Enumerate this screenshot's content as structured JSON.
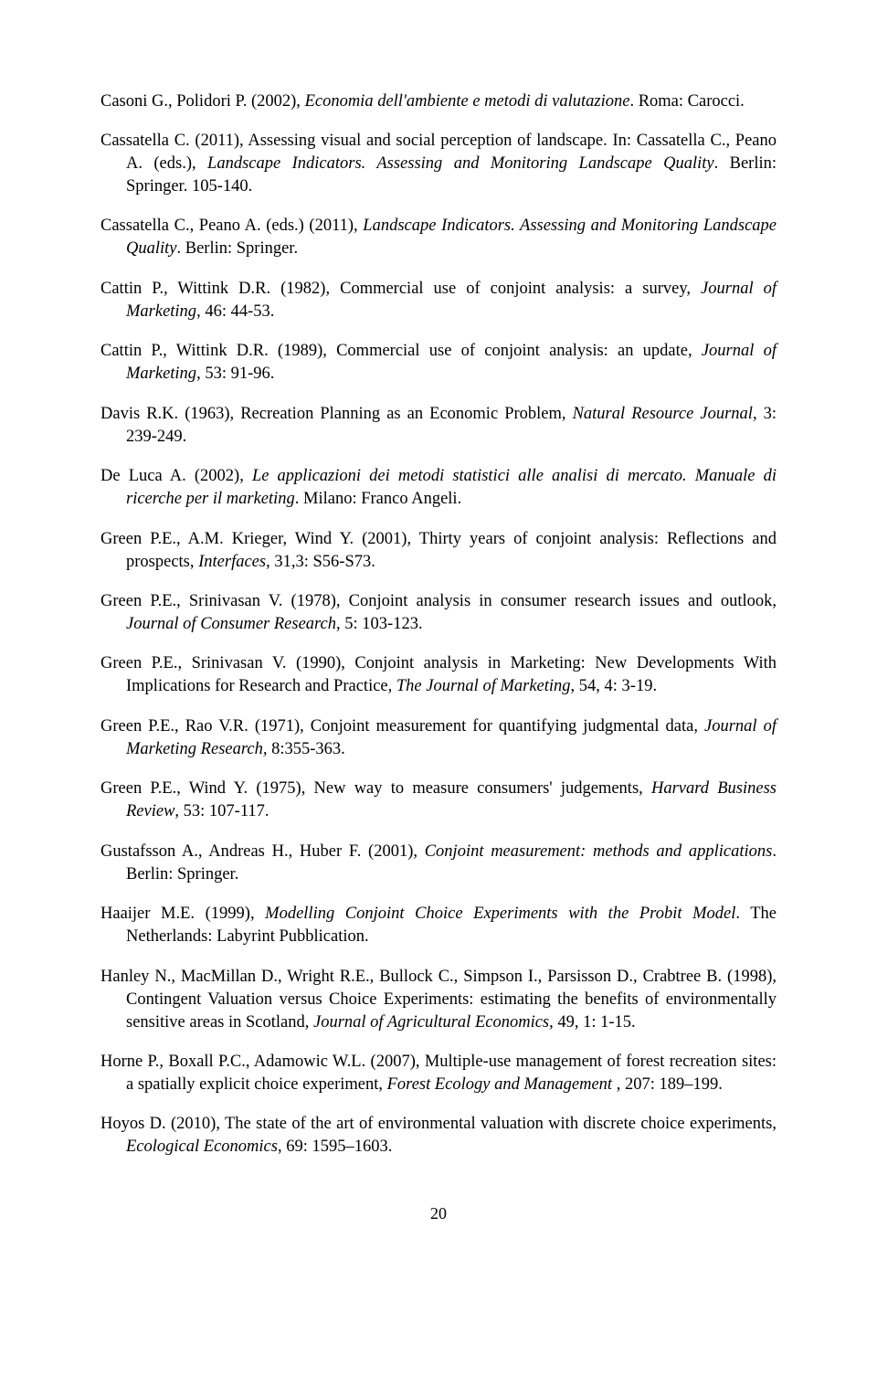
{
  "references": [
    {
      "parts": [
        {
          "t": "Casoni G., Polidori P. (2002), ",
          "i": false
        },
        {
          "t": "Economia dell'ambiente e metodi di valutazione",
          "i": true
        },
        {
          "t": ". Roma: Carocci.",
          "i": false
        }
      ]
    },
    {
      "parts": [
        {
          "t": "Cassatella C. (2011), Assessing visual and social perception of landscape. In: Cassatella C., Peano A. (eds.), ",
          "i": false
        },
        {
          "t": "Landscape Indicators. Assessing and Monitoring Landscape Quality",
          "i": true
        },
        {
          "t": ". Berlin: Springer. 105-140.",
          "i": false
        }
      ]
    },
    {
      "parts": [
        {
          "t": "Cassatella C., Peano A. (eds.) (2011), ",
          "i": false
        },
        {
          "t": "Landscape Indicators. Assessing and Monitoring Landscape Quality",
          "i": true
        },
        {
          "t": ". Berlin: Springer.",
          "i": false
        }
      ]
    },
    {
      "parts": [
        {
          "t": "Cattin P., Wittink D.R. (1982), Commercial use of conjoint analysis: a survey, ",
          "i": false
        },
        {
          "t": "Journal of Marketing",
          "i": true
        },
        {
          "t": ", 46: 44-53.",
          "i": false
        }
      ]
    },
    {
      "parts": [
        {
          "t": "Cattin P., Wittink D.R. (1989), Commercial use of conjoint analysis: an update, ",
          "i": false
        },
        {
          "t": "Journal of Marketing",
          "i": true
        },
        {
          "t": ", 53: 91-96.",
          "i": false
        }
      ]
    },
    {
      "parts": [
        {
          "t": "Davis R.K. (1963), Recreation Planning as an Economic Problem, ",
          "i": false
        },
        {
          "t": "Natural Resource Journal",
          "i": true
        },
        {
          "t": ", 3: 239-249.",
          "i": false
        }
      ]
    },
    {
      "parts": [
        {
          "t": "De Luca A. (2002), ",
          "i": false
        },
        {
          "t": "Le applicazioni dei metodi statistici alle analisi di mercato. Manuale di ricerche per il marketing",
          "i": true
        },
        {
          "t": ". Milano: Franco Angeli.",
          "i": false
        }
      ]
    },
    {
      "parts": [
        {
          "t": "Green P.E., A.M. Krieger, Wind Y. (2001), Thirty years of conjoint analysis: Reflections and prospects, ",
          "i": false
        },
        {
          "t": "Interfaces",
          "i": true
        },
        {
          "t": ", 31,3: S56-S73.",
          "i": false
        }
      ]
    },
    {
      "parts": [
        {
          "t": "Green P.E., Srinivasan V. (1978), Conjoint analysis in consumer research issues and outlook, ",
          "i": false
        },
        {
          "t": "Journal of Consumer Research",
          "i": true
        },
        {
          "t": ", 5: 103-123.",
          "i": false
        }
      ]
    },
    {
      "parts": [
        {
          "t": "Green P.E., Srinivasan V. (1990), Conjoint analysis in Marketing: New Developments With Implications for Research and Practice, ",
          "i": false
        },
        {
          "t": " The Journal of Marketing",
          "i": true
        },
        {
          "t": ", 54, 4: 3-19.",
          "i": false
        }
      ]
    },
    {
      "parts": [
        {
          "t": "Green P.E., Rao V.R. (1971), Conjoint measurement for quantifying judgmental data, ",
          "i": false
        },
        {
          "t": "Journal of Marketing Research, ",
          "i": true
        },
        {
          "t": "8:355-363.",
          "i": false
        }
      ]
    },
    {
      "parts": [
        {
          "t": "Green P.E., Wind Y. (1975), New way to measure consumers' judgements, ",
          "i": false
        },
        {
          "t": "Harvard Business Review",
          "i": true
        },
        {
          "t": ", 53: 107-117.",
          "i": false
        }
      ]
    },
    {
      "parts": [
        {
          "t": "Gustafsson A., Andreas H., Huber F. (2001), ",
          "i": false
        },
        {
          "t": "Conjoint measurement: methods and applications",
          "i": true
        },
        {
          "t": ". Berlin: Springer.",
          "i": false
        }
      ]
    },
    {
      "parts": [
        {
          "t": "Haaijer M.E. (1999), ",
          "i": false
        },
        {
          "t": "Modelling Conjoint Choice Experiments with the Probit Model",
          "i": true
        },
        {
          "t": ". The Netherlands: Labyrint Pubblication.",
          "i": false
        }
      ]
    },
    {
      "parts": [
        {
          "t": "Hanley N., MacMillan D., Wright R.E., Bullock C., Simpson I., Parsisson D., Crabtree B. (1998), Contingent Valuation versus Choice Experiments: estimating the benefits of environmentally sensitive areas in Scotland, ",
          "i": false
        },
        {
          "t": "Journal of Agricultural Economics",
          "i": true
        },
        {
          "t": ", 49, 1: 1-15.",
          "i": false
        }
      ]
    },
    {
      "parts": [
        {
          "t": "Horne P., Boxall P.C., Adamowic W.L. (2007), Multiple-use management of forest recreation sites: a spatially explicit choice experiment, ",
          "i": false
        },
        {
          "t": "Forest Ecology and Management ",
          "i": true
        },
        {
          "t": ", 207: 189–199.",
          "i": false
        }
      ]
    },
    {
      "parts": [
        {
          "t": "Hoyos D. (2010), The state of the art of environmental valuation with discrete choice experiments, ",
          "i": false
        },
        {
          "t": "Ecological Economics",
          "i": true
        },
        {
          "t": ", 69: 1595–1603.",
          "i": false
        }
      ]
    }
  ],
  "pageNumber": "20"
}
